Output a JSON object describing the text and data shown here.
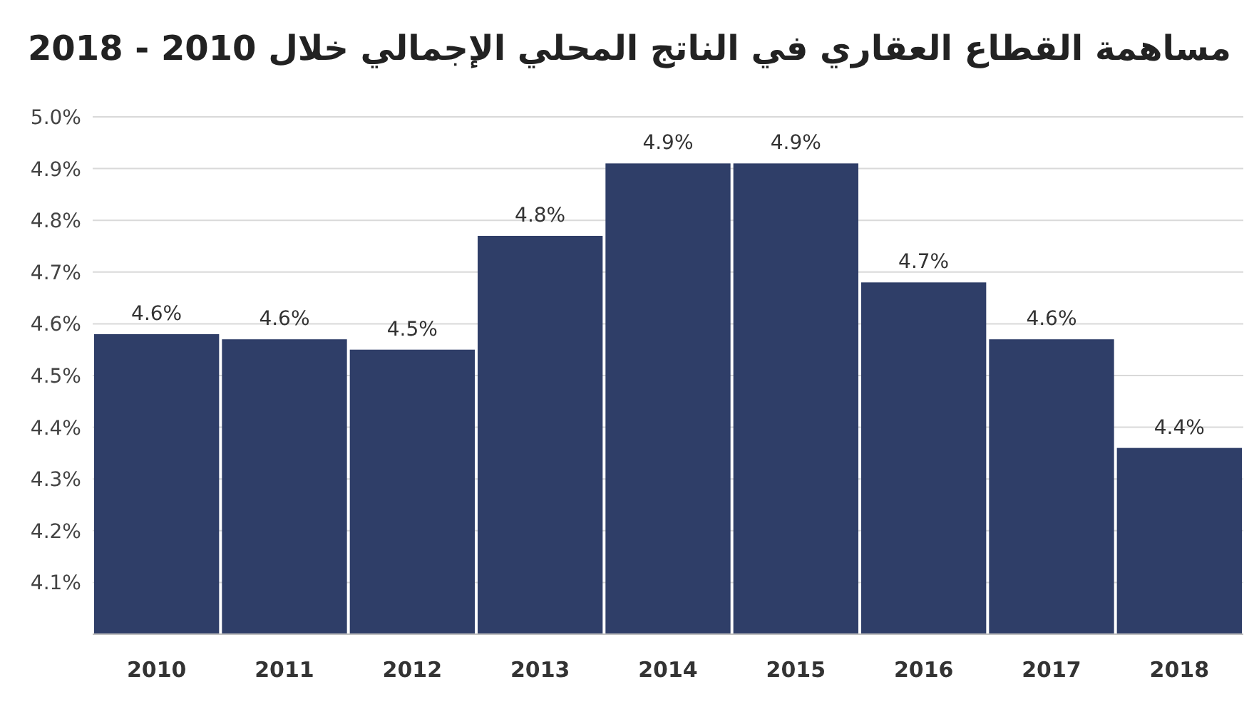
{
  "chart_data": {
    "type": "bar",
    "title": "مساهمة القطاع العقاري في الناتج المحلي الإجمالي خلال 2010 - 2018",
    "categories": [
      "2010",
      "2011",
      "2012",
      "2013",
      "2014",
      "2015",
      "2016",
      "2017",
      "2018"
    ],
    "values": [
      4.58,
      4.57,
      4.55,
      4.77,
      4.91,
      4.91,
      4.68,
      4.57,
      4.36
    ],
    "value_labels": [
      "4.6%",
      "4.6%",
      "4.5%",
      "4.8%",
      "4.9%",
      "4.9%",
      "4.7%",
      "4.6%",
      "4.4%"
    ],
    "color": "#2f3e68",
    "ylim": [
      4.0,
      5.0
    ],
    "yticks": [
      {
        "value": 4.0,
        "label": null
      },
      {
        "value": 4.1,
        "label": "4.1%"
      },
      {
        "value": 4.2,
        "label": "4.2%"
      },
      {
        "value": 4.3,
        "label": "4.3%"
      },
      {
        "value": 4.4,
        "label": "4.4%"
      },
      {
        "value": 4.5,
        "label": "4.5%"
      },
      {
        "value": 4.6,
        "label": "4.6%"
      },
      {
        "value": 4.7,
        "label": "4.7%"
      },
      {
        "value": 4.8,
        "label": "4.8%"
      },
      {
        "value": 4.9,
        "label": "4.9%"
      },
      {
        "value": 5.0,
        "label": "5.0%"
      }
    ],
    "grid": "y"
  }
}
